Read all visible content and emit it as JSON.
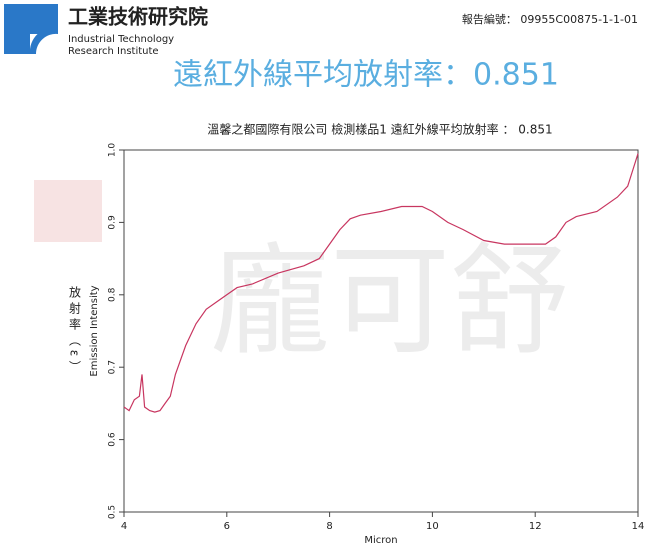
{
  "header": {
    "org_name": "工業技術研究院",
    "org_en_line1": "Industrial Technology",
    "org_en_line2": "Research Institute",
    "report_number": "報告編號： 09955C00875-1-1-01",
    "headline": "遠紅外線平均放射率：0.851"
  },
  "watermark": "龐可舒",
  "chart_data": {
    "type": "line",
    "title": "溫馨之都國際有限公司 檢測樣品1 遠紅外線平均放射率 ： 0.851",
    "x_label": "Micron",
    "y_label": "Emission Intensity",
    "y_label_zh": "放射率（ε）",
    "xlim": [
      4,
      14
    ],
    "xticks": [
      4,
      6,
      8,
      10,
      12,
      14
    ],
    "ylim": [
      0.5,
      1.0
    ],
    "yticks": [
      0.5,
      0.6,
      0.7,
      0.8,
      0.9,
      {
        "value": 1,
        "label": "1.0"
      }
    ],
    "x": [
      4.0,
      4.1,
      4.2,
      4.3,
      4.35,
      4.4,
      4.5,
      4.6,
      4.7,
      4.8,
      4.9,
      5.0,
      5.2,
      5.4,
      5.6,
      5.8,
      6.0,
      6.2,
      6.5,
      7.0,
      7.5,
      7.8,
      8.0,
      8.2,
      8.4,
      8.6,
      9.0,
      9.4,
      9.8,
      10.0,
      10.3,
      10.6,
      11.0,
      11.4,
      11.8,
      12.2,
      12.4,
      12.6,
      12.8,
      13.2,
      13.6,
      13.8,
      14.0
    ],
    "series": [
      {
        "color": "#c83660",
        "values": [
          0.645,
          0.64,
          0.655,
          0.66,
          0.69,
          0.645,
          0.64,
          0.638,
          0.64,
          0.65,
          0.66,
          0.69,
          0.73,
          0.76,
          0.78,
          0.79,
          0.8,
          0.81,
          0.815,
          0.83,
          0.84,
          0.85,
          0.87,
          0.89,
          0.905,
          0.91,
          0.915,
          0.922,
          0.922,
          0.915,
          0.9,
          0.89,
          0.875,
          0.87,
          0.87,
          0.87,
          0.88,
          0.9,
          0.908,
          0.915,
          0.935,
          0.95,
          0.995
        ]
      }
    ]
  }
}
